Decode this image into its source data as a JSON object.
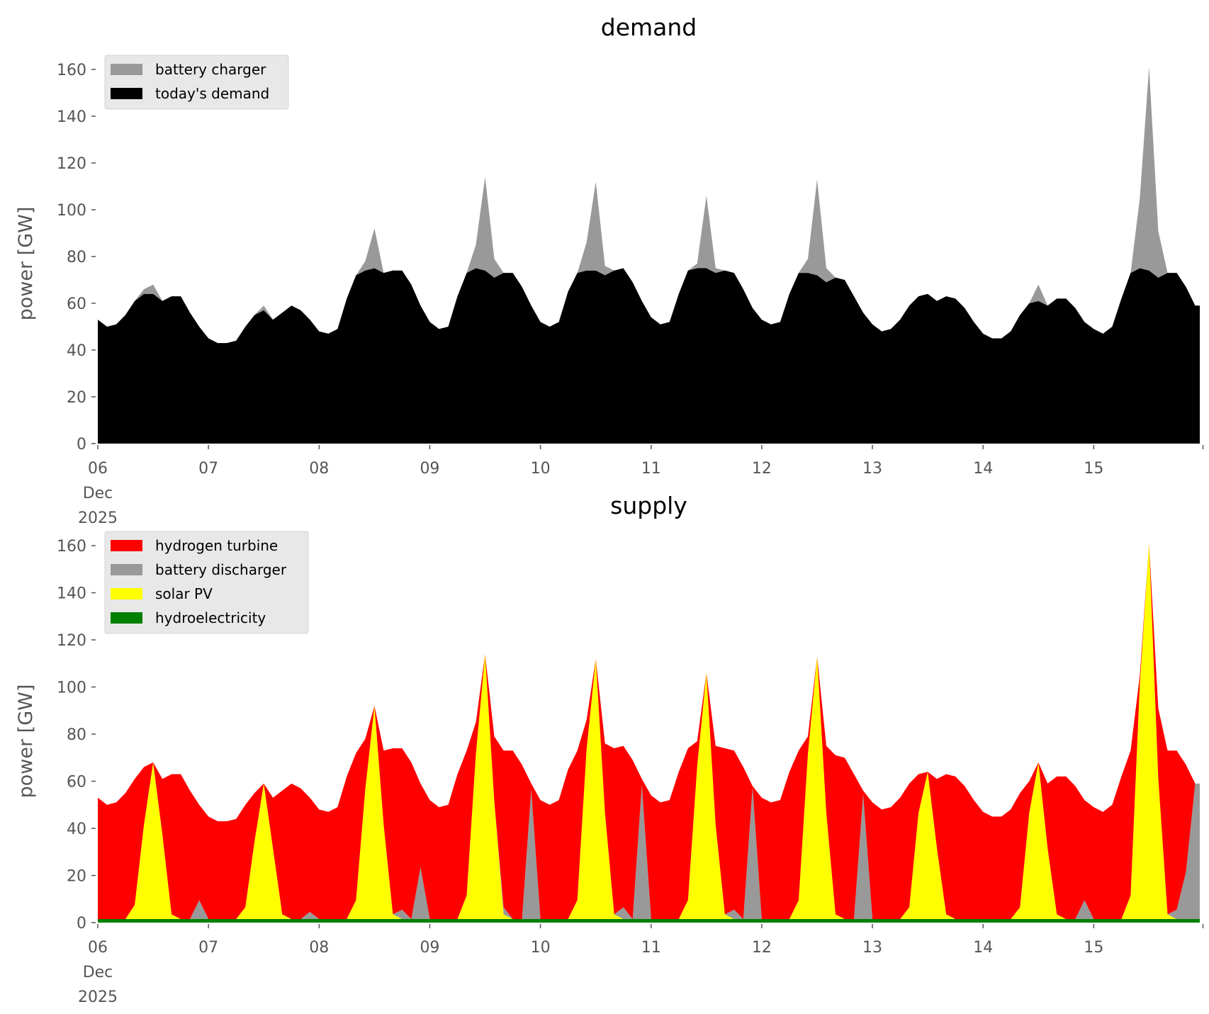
{
  "chart_data": [
    {
      "type": "area",
      "stacked": true,
      "title": "demand",
      "xlabel": "",
      "ylabel": "power [GW]",
      "ylim": [
        0,
        165
      ],
      "xlim_hours": [
        0,
        239
      ],
      "x_unit": "hours since 06 Dec 2025 00:00",
      "x_step_hours": 2,
      "yticks": [
        0,
        20,
        40,
        60,
        80,
        100,
        120,
        140,
        160
      ],
      "xticks": [
        {
          "hour": 0,
          "label": "06",
          "sub1": "Dec",
          "sub2": "2025"
        },
        {
          "hour": 24,
          "label": "07"
        },
        {
          "hour": 48,
          "label": "08"
        },
        {
          "hour": 72,
          "label": "09"
        },
        {
          "hour": 96,
          "label": "10"
        },
        {
          "hour": 120,
          "label": "11"
        },
        {
          "hour": 144,
          "label": "12"
        },
        {
          "hour": 168,
          "label": "13"
        },
        {
          "hour": 192,
          "label": "14"
        },
        {
          "hour": 216,
          "label": "15"
        },
        {
          "hour": 240,
          "label": ""
        }
      ],
      "grid": false,
      "legend_position": "top-left",
      "series": [
        {
          "name": "today's demand",
          "color": "#000000",
          "values": [
            53,
            50,
            51,
            55,
            61,
            64,
            64,
            61,
            63,
            63,
            56,
            50,
            45,
            43,
            43,
            44,
            50,
            55,
            57,
            53,
            56,
            59,
            57,
            53,
            48,
            47,
            49,
            62,
            72,
            74,
            75,
            73,
            74,
            74,
            68,
            59,
            52,
            49,
            50,
            63,
            73,
            75,
            74,
            71,
            73,
            73,
            67,
            59,
            52,
            50,
            52,
            65,
            73,
            74,
            74,
            72,
            74,
            75,
            69,
            61,
            54,
            51,
            52,
            64,
            74,
            75,
            75,
            73,
            74,
            73,
            66,
            58,
            53,
            51,
            52,
            64,
            73,
            73,
            72,
            69,
            71,
            70,
            63,
            56,
            51,
            48,
            49,
            53,
            59,
            63,
            64,
            61,
            63,
            62,
            58,
            52,
            47,
            45,
            45,
            48,
            55,
            60,
            61,
            59,
            62,
            62,
            58,
            52,
            49,
            47,
            50,
            62,
            73,
            75,
            74,
            71,
            73,
            73,
            67,
            59
          ]
        },
        {
          "name": "battery charger",
          "color": "#999999",
          "values": [
            0,
            0,
            0,
            0,
            0,
            2,
            4,
            0,
            0,
            0,
            0,
            0,
            0,
            0,
            0,
            0,
            0,
            0,
            2,
            0,
            0,
            0,
            0,
            0,
            0,
            0,
            0,
            0,
            0,
            4,
            17,
            0,
            0,
            0,
            0,
            0,
            0,
            0,
            0,
            0,
            0,
            10,
            40,
            8,
            0,
            0,
            0,
            0,
            0,
            0,
            0,
            0,
            0,
            12,
            38,
            4,
            0,
            0,
            0,
            0,
            0,
            0,
            0,
            0,
            0,
            2,
            31,
            2,
            0,
            0,
            0,
            0,
            0,
            0,
            0,
            0,
            0,
            6,
            41,
            6,
            0,
            0,
            0,
            0,
            0,
            0,
            0,
            0,
            0,
            0,
            0,
            0,
            0,
            0,
            0,
            0,
            0,
            0,
            0,
            0,
            0,
            0,
            7,
            0,
            0,
            0,
            0,
            0,
            0,
            0,
            0,
            0,
            0,
            30,
            87,
            20,
            0,
            0,
            0,
            0
          ]
        }
      ],
      "legend_order": [
        "battery charger",
        "today's demand"
      ]
    },
    {
      "type": "area",
      "stacked": true,
      "title": "supply",
      "xlabel": "",
      "ylabel": "power [GW]",
      "ylim": [
        0,
        165
      ],
      "xlim_hours": [
        0,
        239
      ],
      "x_unit": "hours since 06 Dec 2025 00:00",
      "x_step_hours": 2,
      "yticks": [
        0,
        20,
        40,
        60,
        80,
        100,
        120,
        140,
        160
      ],
      "xticks": [
        {
          "hour": 0,
          "label": "06",
          "sub1": "Dec",
          "sub2": "2025"
        },
        {
          "hour": 24,
          "label": "07"
        },
        {
          "hour": 48,
          "label": "08"
        },
        {
          "hour": 72,
          "label": "09"
        },
        {
          "hour": 96,
          "label": "10"
        },
        {
          "hour": 120,
          "label": "11"
        },
        {
          "hour": 144,
          "label": "12"
        },
        {
          "hour": 168,
          "label": "13"
        },
        {
          "hour": 192,
          "label": "14"
        },
        {
          "hour": 216,
          "label": "15"
        },
        {
          "hour": 240,
          "label": ""
        }
      ],
      "grid": false,
      "legend_position": "top-left",
      "series": [
        {
          "name": "hydroelectricity",
          "color": "#008000",
          "values": [
            1.5,
            1.5,
            1.5,
            1.5,
            1.5,
            1.5,
            1.5,
            1.5,
            1.5,
            1.5,
            1.5,
            1.5,
            1.5,
            1.5,
            1.5,
            1.5,
            1.5,
            1.5,
            1.5,
            1.5,
            1.5,
            1.5,
            1.5,
            1.5,
            1.5,
            1.5,
            1.5,
            1.5,
            1.5,
            1.5,
            1.5,
            1.5,
            1.5,
            1.5,
            1.5,
            1.5,
            1.5,
            1.5,
            1.5,
            1.5,
            1.5,
            1.5,
            1.5,
            1.5,
            1.5,
            1.5,
            1.5,
            1.5,
            1.5,
            1.5,
            1.5,
            1.5,
            1.5,
            1.5,
            1.5,
            1.5,
            1.5,
            1.5,
            1.5,
            1.5,
            1.5,
            1.5,
            1.5,
            1.5,
            1.5,
            1.5,
            1.5,
            1.5,
            1.5,
            1.5,
            1.5,
            1.5,
            1.5,
            1.5,
            1.5,
            1.5,
            1.5,
            1.5,
            1.5,
            1.5,
            1.5,
            1.5,
            1.5,
            1.5,
            1.5,
            1.5,
            1.5,
            1.5,
            1.5,
            1.5,
            1.5,
            1.5,
            1.5,
            1.5,
            1.5,
            1.5,
            1.5,
            1.5,
            1.5,
            1.5,
            1.5,
            1.5,
            1.5,
            1.5,
            1.5,
            1.5,
            1.5,
            1.5,
            1.5,
            1.5,
            1.5,
            1.5,
            1.5,
            1.5,
            1.5,
            1.5,
            1.5,
            1.5,
            1.5,
            1.5
          ]
        },
        {
          "name": "solar PV",
          "color": "#ffff00",
          "values": [
            0,
            0,
            0,
            0,
            6,
            40,
            66.5,
            36,
            2,
            0,
            0,
            0,
            0,
            0,
            0,
            0,
            5,
            33,
            57.5,
            30,
            2,
            0,
            0,
            0,
            0,
            0,
            0,
            0,
            8,
            55,
            90.5,
            40,
            2,
            0,
            0,
            0,
            0,
            0,
            0,
            0,
            10,
            70,
            112.5,
            50,
            2,
            0,
            0,
            0,
            0,
            0,
            0,
            0,
            8,
            72,
            110.5,
            45,
            2,
            0,
            0,
            0,
            0,
            0,
            0,
            0,
            8,
            65,
            104.5,
            40,
            2,
            0,
            0,
            0,
            0,
            0,
            0,
            0,
            8,
            70,
            111.5,
            45,
            2,
            0,
            0,
            0,
            0,
            0,
            0,
            0,
            5,
            45,
            62.5,
            30,
            2,
            0,
            0,
            0,
            0,
            0,
            0,
            0,
            5,
            45,
            66.5,
            30,
            2,
            0,
            0,
            0,
            0,
            0,
            0,
            0,
            10,
            100,
            159.5,
            60,
            2,
            0,
            0,
            0
          ]
        },
        {
          "name": "battery discharger",
          "color": "#999999",
          "values": [
            0,
            0,
            0,
            0,
            0,
            0,
            0,
            0,
            0,
            0,
            0,
            8,
            0,
            0,
            0,
            0,
            0,
            0,
            0,
            0,
            0,
            0,
            0,
            3,
            0,
            0,
            0,
            0,
            0,
            0,
            0,
            0,
            0,
            4,
            0,
            22,
            0,
            0,
            0,
            0,
            0,
            0,
            0,
            0,
            3,
            0,
            0,
            55,
            0,
            0,
            0,
            0,
            0,
            0,
            0,
            0,
            0,
            5,
            0,
            57,
            0,
            0,
            0,
            0,
            0,
            0,
            0,
            0,
            0,
            4,
            0,
            56,
            0,
            0,
            0,
            0,
            0,
            0,
            0,
            0,
            0,
            0,
            0,
            53,
            0,
            0,
            0,
            0,
            0,
            0,
            0,
            0,
            0,
            0,
            0,
            0,
            0,
            0,
            0,
            0,
            0,
            0,
            0,
            0,
            0,
            0,
            0,
            8,
            0,
            0,
            0,
            0,
            0,
            0,
            0,
            0,
            0,
            4,
            20,
            57.5
          ]
        },
        {
          "name": "hydrogen turbine",
          "color": "#ff0000",
          "values": [
            51.5,
            48.5,
            49.5,
            53.5,
            53.5,
            24.5,
            0,
            23.5,
            59.5,
            61.5,
            54.5,
            40.5,
            43.5,
            41.5,
            41.5,
            42.5,
            43.5,
            20.5,
            0,
            21.5,
            52.5,
            57.5,
            55.5,
            48.5,
            46.5,
            45.5,
            47.5,
            60.5,
            62.5,
            21.5,
            0,
            31.5,
            70.5,
            68.5,
            66.5,
            35.5,
            50.5,
            47.5,
            48.5,
            61.5,
            61.5,
            13.5,
            0,
            27.5,
            66.5,
            71.5,
            65.5,
            2.5,
            50.5,
            48.5,
            50.5,
            63.5,
            63.5,
            12.5,
            0,
            29.5,
            70.5,
            68.5,
            67.5,
            2.5,
            52.5,
            49.5,
            50.5,
            62.5,
            64.5,
            10.5,
            0,
            33.5,
            70.5,
            67.5,
            64.5,
            0.5,
            51.5,
            49.5,
            50.5,
            62.5,
            63.5,
            7.5,
            0,
            28.5,
            67.5,
            68.5,
            61.5,
            1.5,
            49.5,
            46.5,
            47.5,
            51.5,
            52.5,
            16.5,
            0,
            29.5,
            59.5,
            60.5,
            56.5,
            50.5,
            45.5,
            43.5,
            43.5,
            46.5,
            48.5,
            13.5,
            0,
            27.5,
            58.5,
            60.5,
            56.5,
            42.5,
            47.5,
            45.5,
            48.5,
            60.5,
            61.5,
            3.5,
            0,
            29.5,
            69.5,
            67.5,
            45.5,
            0
          ]
        }
      ],
      "legend_order": [
        "hydrogen turbine",
        "battery discharger",
        "solar PV",
        "hydroelectricity"
      ]
    }
  ]
}
